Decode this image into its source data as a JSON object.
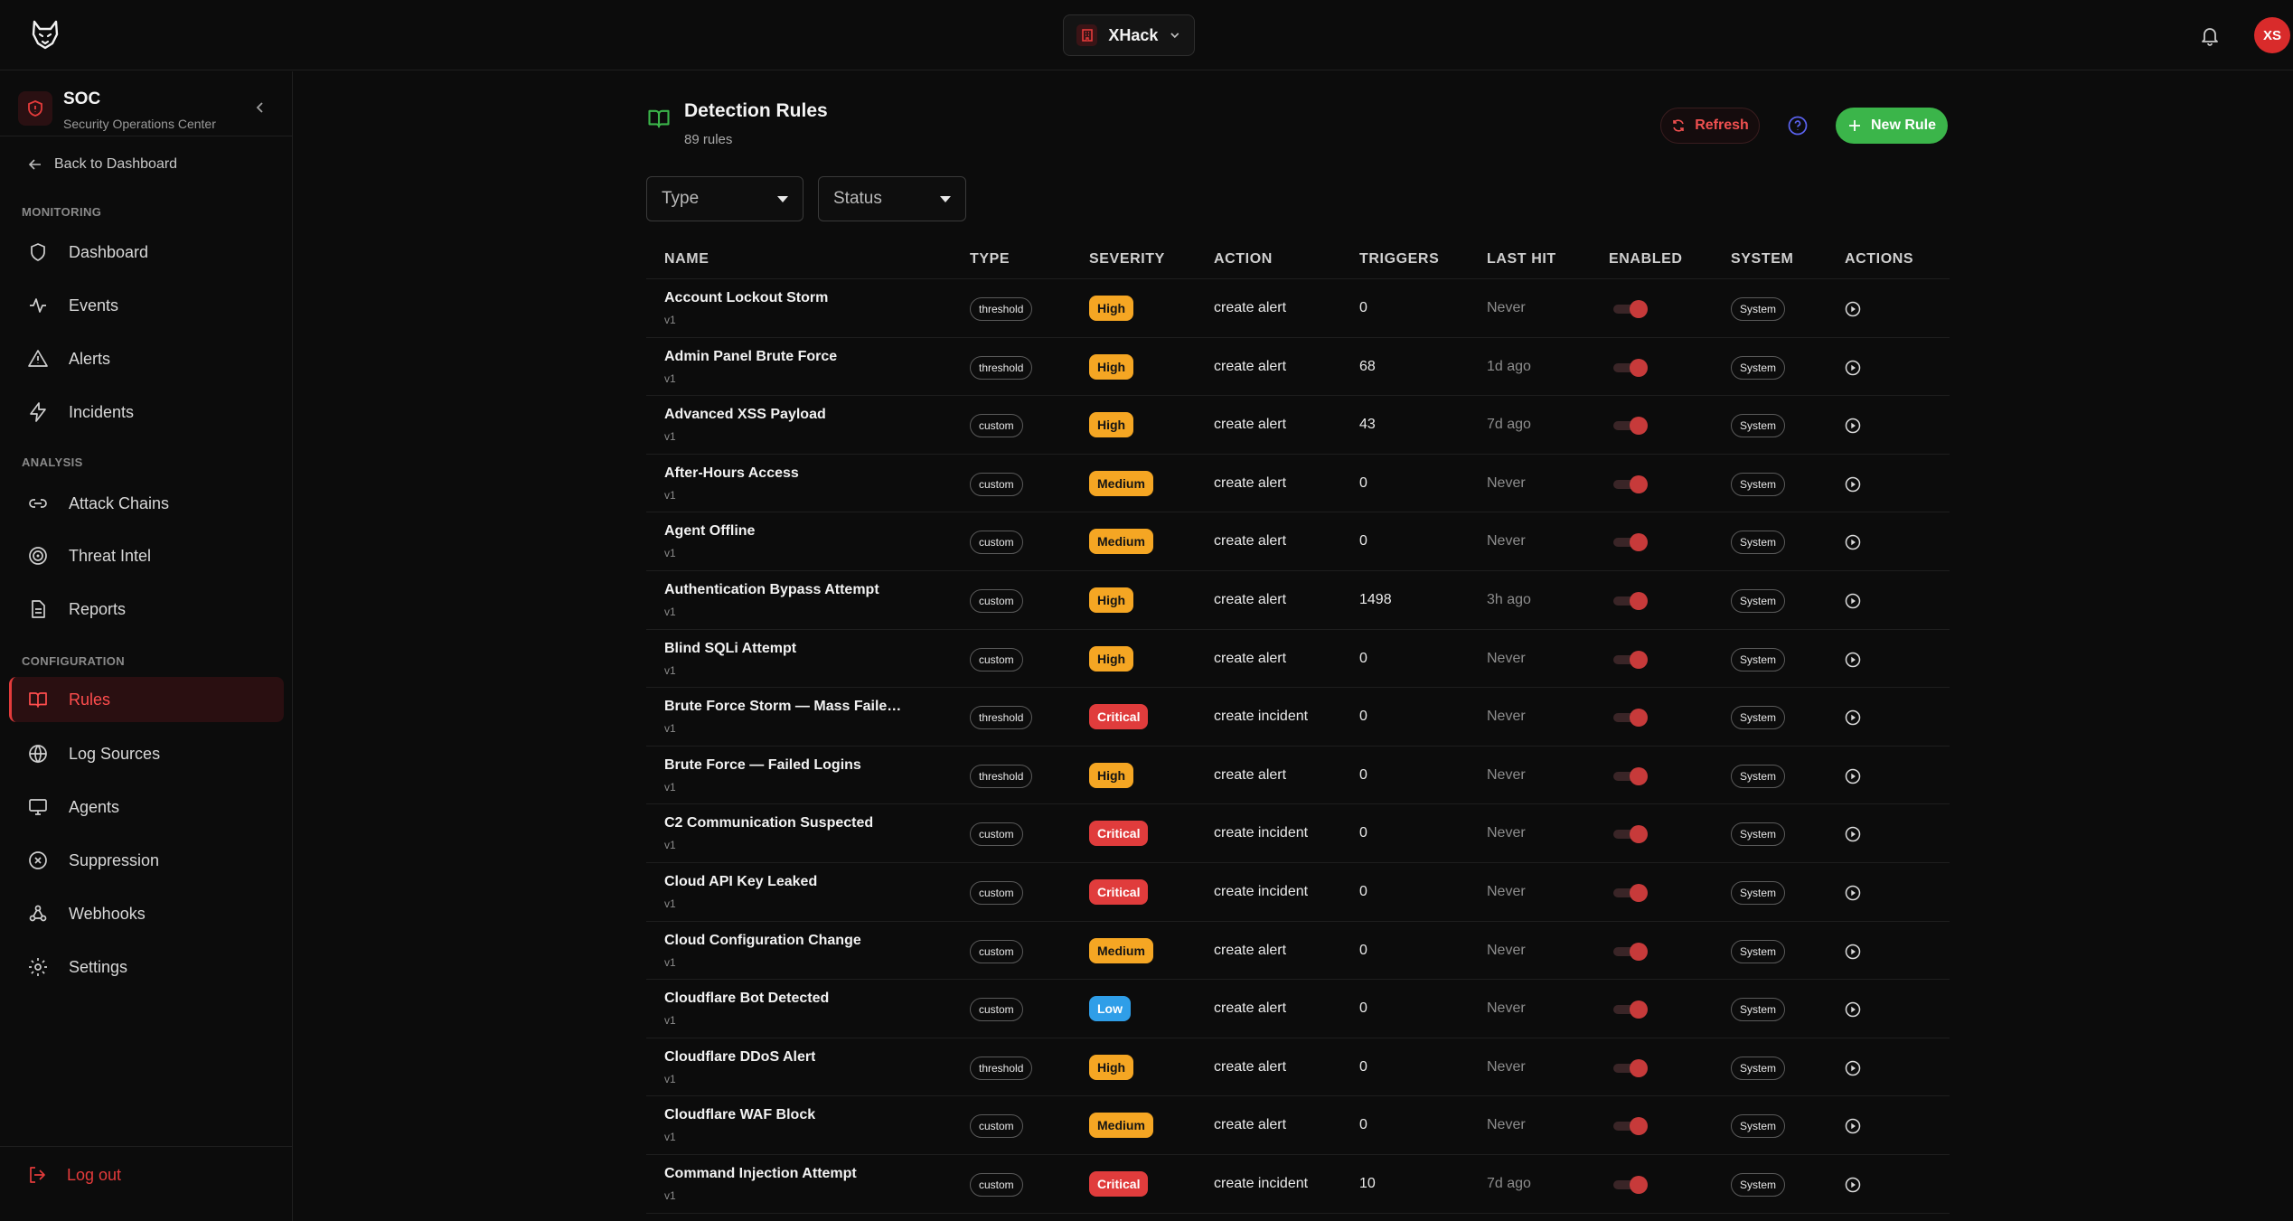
{
  "topbar": {
    "workspace": "XHack",
    "user_initials": "XS"
  },
  "sidebar": {
    "app_title": "SOC",
    "app_subtitle": "Security Operations Center",
    "back_label": "Back to Dashboard",
    "sections": {
      "monitoring": "MONITORING",
      "analysis": "ANALYSIS",
      "configuration": "CONFIGURATION"
    },
    "items": [
      {
        "label": "Dashboard",
        "icon": "shield-icon"
      },
      {
        "label": "Events",
        "icon": "activity-icon"
      },
      {
        "label": "Alerts",
        "icon": "warning-triangle-icon"
      },
      {
        "label": "Incidents",
        "icon": "lightning-icon"
      },
      {
        "label": "Attack Chains",
        "icon": "link-icon"
      },
      {
        "label": "Threat Intel",
        "icon": "target-icon"
      },
      {
        "label": "Reports",
        "icon": "document-icon"
      },
      {
        "label": "Rules",
        "icon": "book-icon",
        "active": true
      },
      {
        "label": "Log Sources",
        "icon": "globe-icon"
      },
      {
        "label": "Agents",
        "icon": "monitor-icon"
      },
      {
        "label": "Suppression",
        "icon": "circle-x-icon"
      },
      {
        "label": "Webhooks",
        "icon": "webhook-icon"
      },
      {
        "label": "Settings",
        "icon": "gear-icon"
      }
    ],
    "logout_label": "Log out"
  },
  "page": {
    "title": "Detection Rules",
    "count": "89 rules",
    "refresh_label": "Refresh",
    "new_rule_label": "New Rule",
    "filters": {
      "type": "Type",
      "status": "Status"
    }
  },
  "colors": {
    "accent": "#e43b3b",
    "success": "#3bb54a",
    "high": "#f5a623",
    "critical": "#e03c3c",
    "low": "#2f9ee8"
  },
  "table": {
    "columns": [
      "NAME",
      "TYPE",
      "SEVERITY",
      "ACTION",
      "TRIGGERS",
      "LAST HIT",
      "ENABLED",
      "SYSTEM",
      "ACTIONS"
    ],
    "rows": [
      {
        "name": "Account Lockout Storm",
        "version": "v1",
        "type": "threshold",
        "severity": "High",
        "action": "create alert",
        "triggers": "0",
        "last_hit": "Never",
        "system": "System"
      },
      {
        "name": "Admin Panel Brute Force",
        "version": "v1",
        "type": "threshold",
        "severity": "High",
        "action": "create alert",
        "triggers": "68",
        "last_hit": "1d ago",
        "system": "System"
      },
      {
        "name": "Advanced XSS Payload",
        "version": "v1",
        "type": "custom",
        "severity": "High",
        "action": "create alert",
        "triggers": "43",
        "last_hit": "7d ago",
        "system": "System"
      },
      {
        "name": "After-Hours Access",
        "version": "v1",
        "type": "custom",
        "severity": "Medium",
        "action": "create alert",
        "triggers": "0",
        "last_hit": "Never",
        "system": "System"
      },
      {
        "name": "Agent Offline",
        "version": "v1",
        "type": "custom",
        "severity": "Medium",
        "action": "create alert",
        "triggers": "0",
        "last_hit": "Never",
        "system": "System"
      },
      {
        "name": "Authentication Bypass Attempt",
        "version": "v1",
        "type": "custom",
        "severity": "High",
        "action": "create alert",
        "triggers": "1498",
        "last_hit": "3h ago",
        "system": "System"
      },
      {
        "name": "Blind SQLi Attempt",
        "version": "v1",
        "type": "custom",
        "severity": "High",
        "action": "create alert",
        "triggers": "0",
        "last_hit": "Never",
        "system": "System"
      },
      {
        "name": "Brute Force Storm — Mass Failed L...",
        "version": "v1",
        "type": "threshold",
        "severity": "Critical",
        "action": "create incident",
        "triggers": "0",
        "last_hit": "Never",
        "system": "System"
      },
      {
        "name": "Brute Force — Failed Logins",
        "version": "v1",
        "type": "threshold",
        "severity": "High",
        "action": "create alert",
        "triggers": "0",
        "last_hit": "Never",
        "system": "System"
      },
      {
        "name": "C2 Communication Suspected",
        "version": "v1",
        "type": "custom",
        "severity": "Critical",
        "action": "create incident",
        "triggers": "0",
        "last_hit": "Never",
        "system": "System"
      },
      {
        "name": "Cloud API Key Leaked",
        "version": "v1",
        "type": "custom",
        "severity": "Critical",
        "action": "create incident",
        "triggers": "0",
        "last_hit": "Never",
        "system": "System"
      },
      {
        "name": "Cloud Configuration Change",
        "version": "v1",
        "type": "custom",
        "severity": "Medium",
        "action": "create alert",
        "triggers": "0",
        "last_hit": "Never",
        "system": "System"
      },
      {
        "name": "Cloudflare Bot Detected",
        "version": "v1",
        "type": "custom",
        "severity": "Low",
        "action": "create alert",
        "triggers": "0",
        "last_hit": "Never",
        "system": "System"
      },
      {
        "name": "Cloudflare DDoS Alert",
        "version": "v1",
        "type": "threshold",
        "severity": "High",
        "action": "create alert",
        "triggers": "0",
        "last_hit": "Never",
        "system": "System"
      },
      {
        "name": "Cloudflare WAF Block",
        "version": "v1",
        "type": "custom",
        "severity": "Medium",
        "action": "create alert",
        "triggers": "0",
        "last_hit": "Never",
        "system": "System"
      },
      {
        "name": "Command Injection Attempt",
        "version": "v1",
        "type": "custom",
        "severity": "Critical",
        "action": "create incident",
        "triggers": "10",
        "last_hit": "7d ago",
        "system": "System"
      }
    ]
  }
}
